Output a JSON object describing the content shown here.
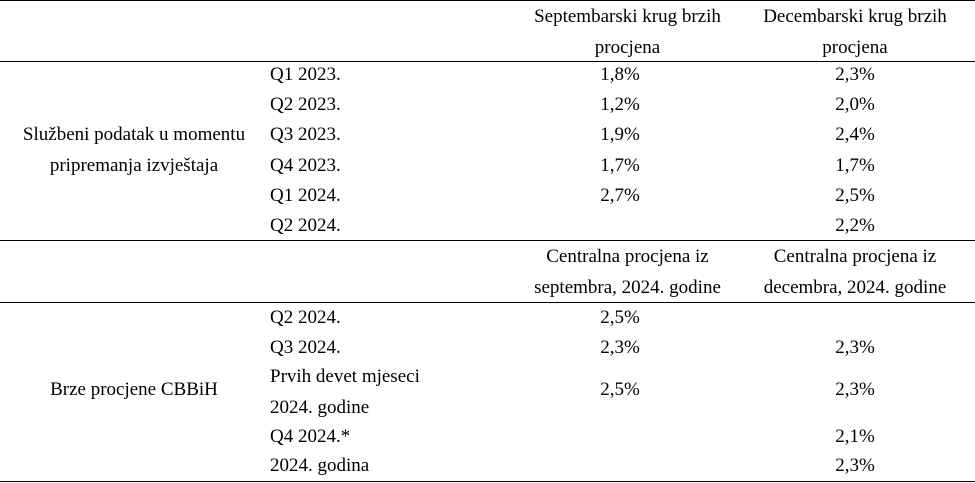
{
  "header_top": {
    "col_sept": [
      "Septembarski krug brzih",
      "procjena"
    ],
    "col_dec": [
      "Decembarski krug brzih",
      "procjena"
    ]
  },
  "section1": {
    "label": [
      "Službeni podatak u momentu",
      "pripremanja izvještaja"
    ],
    "rows": [
      {
        "period": "Q1 2023.",
        "sept": "1,8%",
        "dec": "2,3%"
      },
      {
        "period": "Q2 2023.",
        "sept": "1,2%",
        "dec": "2,0%"
      },
      {
        "period": "Q3 2023.",
        "sept": "1,9%",
        "dec": "2,4%"
      },
      {
        "period": "Q4 2023.",
        "sept": "1,7%",
        "dec": "1,7%"
      },
      {
        "period": "Q1 2024.",
        "sept": "2,7%",
        "dec": "2,5%"
      },
      {
        "period": "Q2 2024.",
        "sept": "",
        "dec": "2,2%"
      }
    ]
  },
  "header_mid": {
    "col_sept": [
      "Centralna procjena iz",
      "septembra, 2024. godine"
    ],
    "col_dec": [
      "Centralna procjena iz",
      "decembra, 2024. godine"
    ]
  },
  "section2": {
    "label": "Brze procjene CBBiH",
    "rows": [
      {
        "period": [
          "Q2 2024."
        ],
        "sept": "2,5%",
        "dec": ""
      },
      {
        "period": [
          "Q3 2024."
        ],
        "sept": "2,3%",
        "dec": "2,3%"
      },
      {
        "period": [
          "Prvih devet mjeseci",
          "2024. godine"
        ],
        "sept": "2,5%",
        "dec": "2,3%"
      },
      {
        "period": [
          "Q4 2024.*"
        ],
        "sept": "",
        "dec": "2,1%"
      },
      {
        "period": [
          "2024. godina"
        ],
        "sept": "",
        "dec": "2,3%"
      }
    ]
  }
}
